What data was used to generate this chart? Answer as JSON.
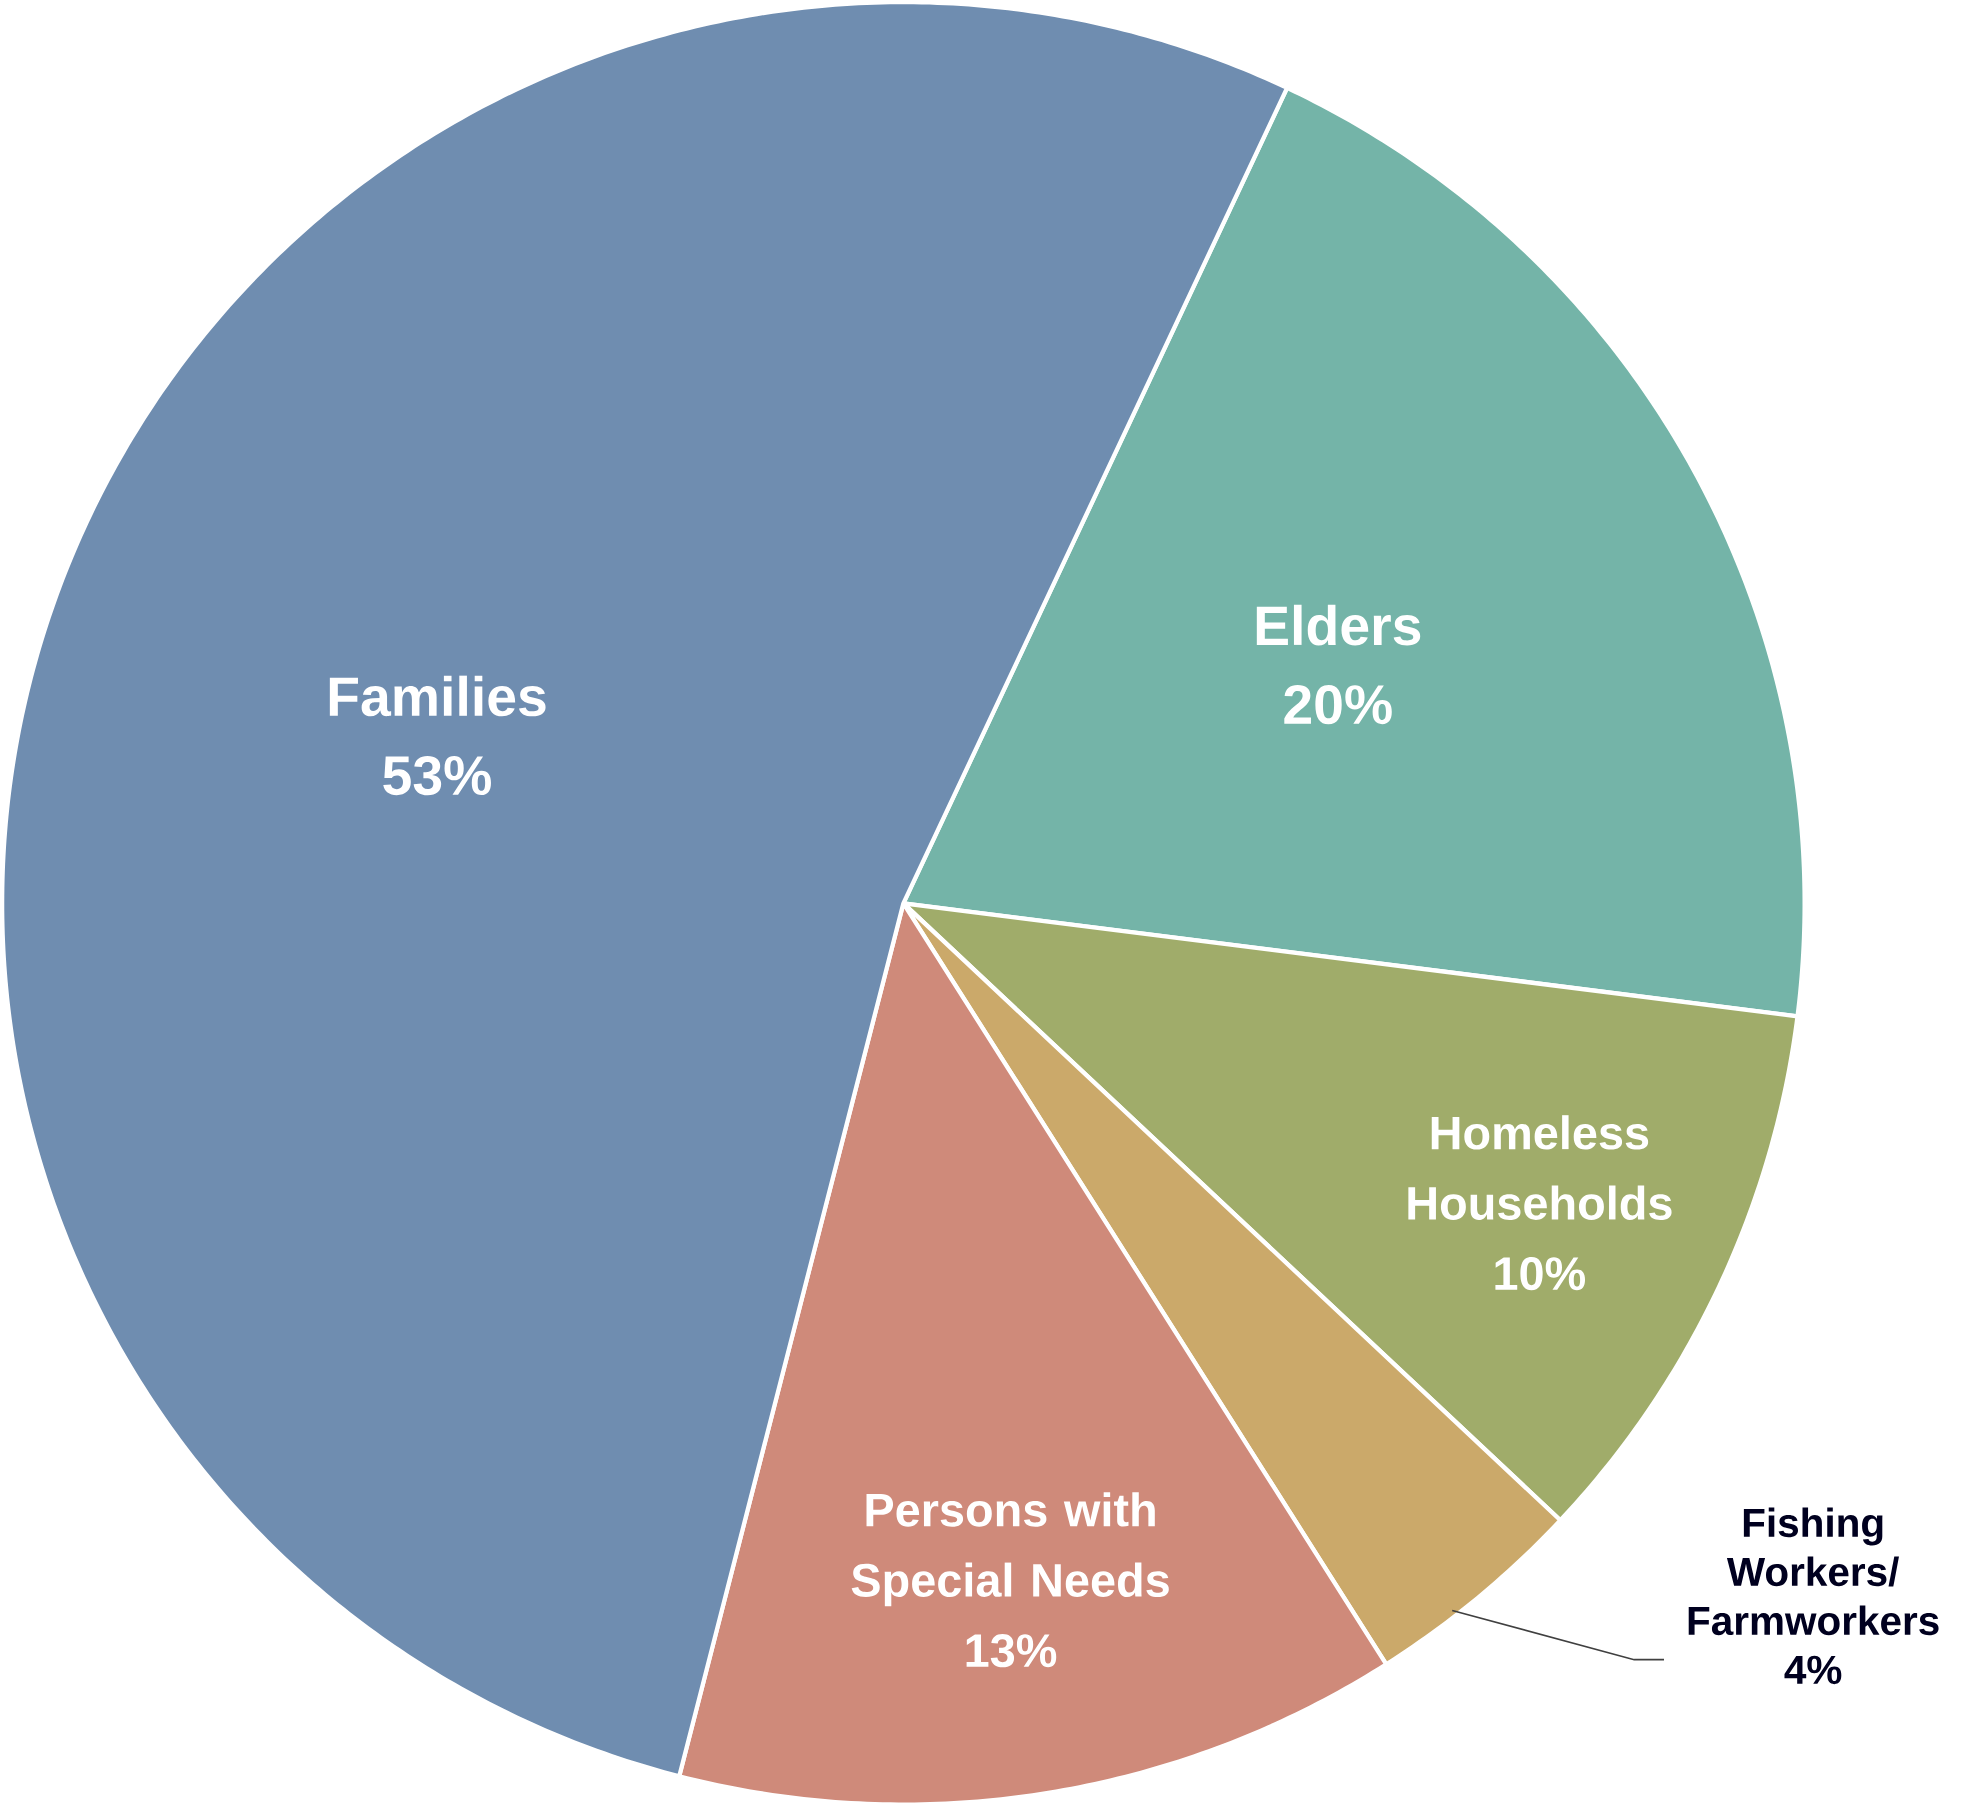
{
  "chart_data": {
    "type": "pie",
    "categories": [
      "Elders",
      "Homeless Households",
      "Fishing Workers/ Farmworkers",
      "Persons with Special Needs",
      "Families"
    ],
    "values": [
      20,
      10,
      4,
      13,
      53
    ],
    "colors": [
      "#74b4a8",
      "#a0ac6a",
      "#cba96a",
      "#cf8a7a",
      "#6f8db0"
    ],
    "value_labels": [
      "20%",
      "10%",
      "4%",
      "13%",
      "53%"
    ]
  }
}
